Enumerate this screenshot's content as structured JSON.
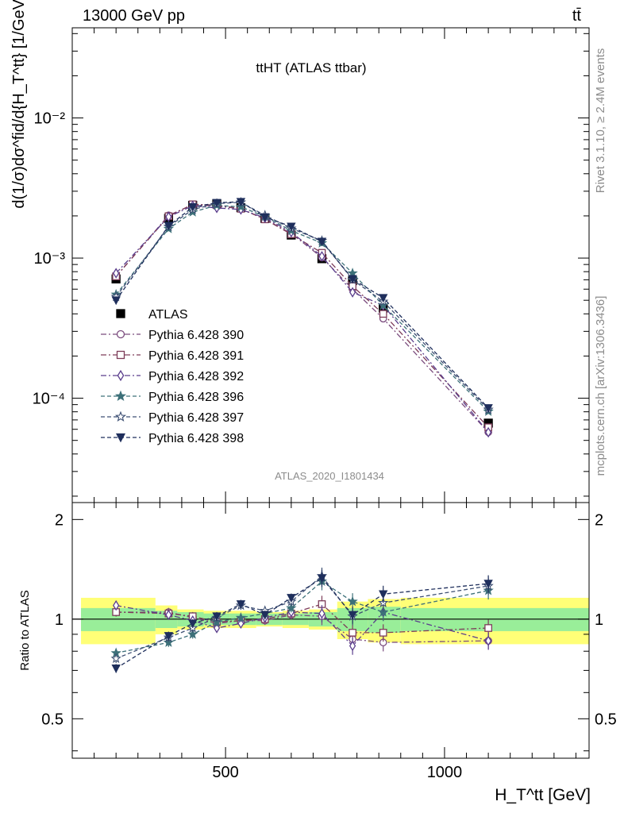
{
  "header": {
    "left": "13000 GeV pp",
    "right": "tt̄"
  },
  "side_texts": {
    "rivet": "Rivet 3.1.10, ≥ 2.4M events",
    "mcplots": "mcplots.cern.ch [arXiv:1306.3436]"
  },
  "chart_data": [
    {
      "type": "line",
      "panel": "main",
      "title": "ttHT (ATLAS ttbar)",
      "watermark": "ATLAS_2020_I1801434",
      "ylabel": "d(1/σ)dσ^fid/d{H_T^tt} [1/GeV]",
      "yscale": "log",
      "ylim": [
        1.8e-05,
        0.044
      ],
      "xlim": [
        150,
        1330
      ],
      "y_tick_labels": [
        "10⁻⁴",
        "10⁻³",
        "10⁻²"
      ],
      "legend_position": "middle-left",
      "x": [
        250,
        370,
        425,
        480,
        535,
        590,
        650,
        720,
        790,
        860,
        1100
      ],
      "series": [
        {
          "name": "ATLAS",
          "color": "#000000",
          "marker": "square-filled",
          "dash": "none",
          "values": [
            0.00071,
            0.00192,
            0.00238,
            0.00244,
            0.00229,
            0.00192,
            0.00146,
            0.00099,
            0.00069,
            0.00044,
            6.64e-05
          ]
        },
        {
          "name": "Pythia 6.428 390",
          "color": "#7b4c7e",
          "marker": "circle-open",
          "dash": "dashdot",
          "values": [
            0.00074,
            0.00202,
            0.0024,
            0.00235,
            0.00225,
            0.0019,
            0.0015,
            0.00101,
            0.0006,
            0.00037,
            5.72e-05
          ]
        },
        {
          "name": "Pythia 6.428 391",
          "color": "#7d3c59",
          "marker": "square-open",
          "dash": "dashdot",
          "values": [
            0.00074,
            0.00199,
            0.00242,
            0.00239,
            0.00225,
            0.00189,
            0.00148,
            0.00109,
            0.00063,
            0.0004,
            6.2e-05
          ]
        },
        {
          "name": "Pythia 6.428 392",
          "color": "#5a3d8c",
          "marker": "diamond-open",
          "dash": "dashdot",
          "values": [
            0.00078,
            0.00197,
            0.00236,
            0.00228,
            0.00222,
            0.00194,
            0.00153,
            0.00103,
            0.00057,
            0.00046,
            5.71e-05
          ]
        },
        {
          "name": "Pythia 6.428 396",
          "color": "#3d7079",
          "marker": "star-filled",
          "dash": "dashed",
          "values": [
            0.00055,
            0.00162,
            0.00213,
            0.00238,
            0.00232,
            0.00198,
            0.00157,
            0.00128,
            0.00078,
            0.00046,
            8.05e-05
          ]
        },
        {
          "name": "Pythia 6.428 397",
          "color": "#3d4f73",
          "marker": "star-open",
          "dash": "dashed",
          "values": [
            0.00053,
            0.00168,
            0.00222,
            0.00245,
            0.0025,
            0.00202,
            0.00163,
            0.00133,
            0.0007,
            0.00049,
            8.3e-05
          ]
        },
        {
          "name": "Pythia 6.428 398",
          "color": "#1f2f5c",
          "marker": "triangle-down-filled",
          "dash": "dashed",
          "values": [
            0.0005,
            0.0017,
            0.00231,
            0.00248,
            0.00252,
            0.00196,
            0.00168,
            0.00131,
            0.00071,
            0.00052,
            8.5e-05
          ]
        }
      ]
    },
    {
      "type": "line",
      "panel": "ratio",
      "ylabel": "Ratio to ATLAS",
      "xlabel": "H_T^tt [GeV]",
      "ylim": [
        0.38,
        2.25
      ],
      "xlim": [
        150,
        1330
      ],
      "x_tick_labels": [
        "500",
        "1000"
      ],
      "y_tick_labels": [
        "0.5",
        "1",
        "2"
      ],
      "reference_line": 1,
      "bands": {
        "edges": [
          170,
          340,
          390,
          450,
          510,
          570,
          630,
          690,
          755,
          825,
          900,
          1330
        ],
        "stat_syst_half_width": [
          0.16,
          0.1,
          0.07,
          0.06,
          0.06,
          0.05,
          0.06,
          0.07,
          0.13,
          0.15,
          0.16
        ],
        "stat_half_width": [
          0.08,
          0.06,
          0.05,
          0.04,
          0.04,
          0.04,
          0.04,
          0.05,
          0.08,
          0.09,
          0.08
        ],
        "outer_color": "#ffff77",
        "inner_color": "#99ee99"
      },
      "x": [
        250,
        370,
        425,
        480,
        535,
        590,
        650,
        720,
        790,
        860,
        1100
      ],
      "series": [
        {
          "name": "Pythia 6.428 390",
          "values": [
            1.05,
            1.05,
            1.01,
            0.97,
            0.99,
            0.99,
            1.03,
            1.02,
            0.87,
            0.85,
            0.86
          ]
        },
        {
          "name": "Pythia 6.428 391",
          "values": [
            1.05,
            1.04,
            1.02,
            0.98,
            0.99,
            1.0,
            1.04,
            1.11,
            0.91,
            0.91,
            0.94
          ]
        },
        {
          "name": "Pythia 6.428 392",
          "values": [
            1.1,
            1.03,
            0.99,
            0.94,
            0.97,
            1.01,
            1.05,
            1.04,
            0.83,
            1.05,
            0.86
          ]
        },
        {
          "name": "Pythia 6.428 396",
          "values": [
            0.79,
            0.85,
            0.9,
            0.98,
            1.01,
            1.04,
            1.08,
            1.3,
            1.13,
            1.05,
            1.22
          ]
        },
        {
          "name": "Pythia 6.428 397",
          "values": [
            0.76,
            0.88,
            0.94,
            1.01,
            1.1,
            1.06,
            1.13,
            1.35,
            1.02,
            1.12,
            1.26
          ]
        },
        {
          "name": "Pythia 6.428 398",
          "values": [
            0.71,
            0.89,
            0.97,
            1.02,
            1.11,
            1.03,
            1.16,
            1.33,
            1.03,
            1.19,
            1.28
          ]
        }
      ]
    }
  ]
}
